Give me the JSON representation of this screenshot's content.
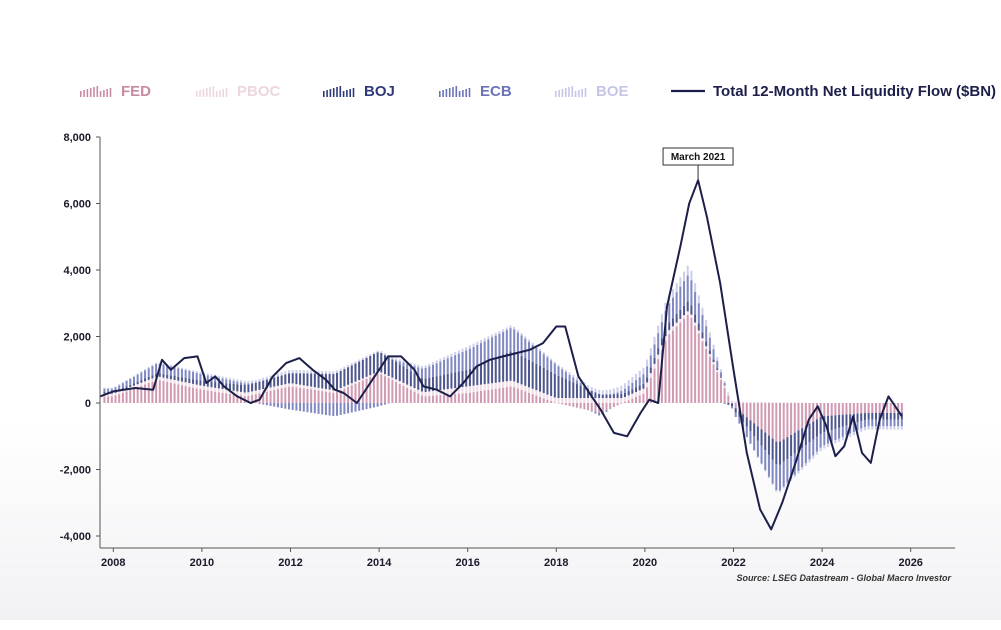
{
  "chart_data": {
    "type": "bar",
    "title": "",
    "xlabel": "",
    "ylabel": "",
    "legend_position": "top",
    "ylim": [
      -4000,
      8000
    ],
    "y_ticks": [
      8000,
      6000,
      4000,
      2000,
      0,
      -2000,
      -4000
    ],
    "y_tick_labels": [
      "8,000",
      "6,000",
      "4,000",
      "2,000",
      "0",
      "-2,000",
      "-4,000"
    ],
    "xlim": [
      2007.7,
      2027.0
    ],
    "x_ticks": [
      2008,
      2010,
      2012,
      2014,
      2016,
      2018,
      2020,
      2022,
      2024,
      2026
    ],
    "x_tick_labels": [
      "2008",
      "2010",
      "2012",
      "2014",
      "2016",
      "2018",
      "2020",
      "2022",
      "2024",
      "2026"
    ],
    "grid": false,
    "stacked": true,
    "series": [
      {
        "name": "FED",
        "kind": "bar",
        "color": "#c98aa6",
        "x": [
          2008,
          2009,
          2010,
          2011,
          2012,
          2013,
          2014,
          2015,
          2016,
          2017,
          2018,
          2019,
          2020,
          2020.5,
          2021,
          2021.5,
          2022,
          2023,
          2024,
          2025
        ],
        "y": [
          200,
          700,
          400,
          200,
          500,
          300,
          900,
          200,
          300,
          500,
          0,
          -300,
          300,
          2000,
          2700,
          1300,
          -100,
          -1200,
          -400,
          -300
        ]
      },
      {
        "name": "PBOC",
        "kind": "bar",
        "color": "#ecd6e0",
        "x": [
          2008,
          2010,
          2012,
          2014,
          2016,
          2018,
          2020,
          2022,
          2024
        ],
        "y": [
          80,
          120,
          100,
          50,
          200,
          150,
          150,
          50,
          0
        ]
      },
      {
        "name": "BOJ",
        "kind": "bar",
        "color": "#2f3a7a",
        "x": [
          2008,
          2010,
          2012,
          2013,
          2014,
          2015,
          2016,
          2017,
          2018,
          2019,
          2020,
          2021,
          2022,
          2023,
          2024,
          2025
        ],
        "y": [
          50,
          150,
          300,
          500,
          600,
          400,
          500,
          900,
          700,
          100,
          150,
          300,
          -100,
          -700,
          -500,
          -200
        ]
      },
      {
        "name": "ECB",
        "kind": "bar",
        "color": "#6b74b8",
        "x": [
          2008,
          2009,
          2010,
          2011,
          2012,
          2013,
          2014,
          2015,
          2016,
          2017,
          2018,
          2019,
          2020,
          2021,
          2022,
          2023,
          2024,
          2025
        ],
        "y": [
          100,
          300,
          200,
          50,
          -200,
          -400,
          -100,
          300,
          600,
          700,
          300,
          -100,
          300,
          800,
          -100,
          -800,
          -400,
          -200
        ]
      },
      {
        "name": "BOE",
        "kind": "bar",
        "color": "#c4c6e6",
        "x": [
          2008,
          2010,
          2012,
          2014,
          2016,
          2018,
          2020,
          2021,
          2022,
          2024
        ],
        "y": [
          30,
          50,
          100,
          50,
          100,
          50,
          200,
          300,
          0,
          -100
        ]
      },
      {
        "name": "Total 12-Month Net Liquidity Flow ($BN)",
        "kind": "line",
        "color": "#1c1f4a",
        "x": [
          2007.7,
          2008.0,
          2008.5,
          2008.9,
          2009.1,
          2009.3,
          2009.6,
          2009.9,
          2010.1,
          2010.3,
          2010.5,
          2010.8,
          2011.1,
          2011.3,
          2011.6,
          2011.9,
          2012.2,
          2012.5,
          2012.8,
          2013.0,
          2013.2,
          2013.5,
          2013.8,
          2014.0,
          2014.2,
          2014.5,
          2014.8,
          2015.0,
          2015.3,
          2015.6,
          2015.9,
          2016.2,
          2016.5,
          2016.8,
          2017.1,
          2017.4,
          2017.7,
          2018.0,
          2018.2,
          2018.5,
          2018.8,
          2019.0,
          2019.3,
          2019.6,
          2019.9,
          2020.1,
          2020.3,
          2020.5,
          2020.8,
          2021.0,
          2021.2,
          2021.4,
          2021.7,
          2022.0,
          2022.3,
          2022.6,
          2022.85,
          2023.1,
          2023.4,
          2023.7,
          2023.9,
          2024.1,
          2024.3,
          2024.5,
          2024.7,
          2024.9,
          2025.1,
          2025.3,
          2025.5,
          2025.7,
          2025.8
        ],
        "y": [
          200,
          350,
          450,
          400,
          1300,
          1000,
          1350,
          1400,
          600,
          800,
          500,
          200,
          0,
          100,
          800,
          1200,
          1350,
          1000,
          700,
          400,
          300,
          0,
          600,
          1000,
          1400,
          1400,
          1000,
          500,
          400,
          200,
          600,
          1100,
          1300,
          1400,
          1500,
          1600,
          1800,
          2300,
          2300,
          800,
          200,
          -200,
          -900,
          -1000,
          -300,
          100,
          0,
          2900,
          4700,
          6000,
          6700,
          5600,
          3600,
          1000,
          -1500,
          -3200,
          -3800,
          -3000,
          -1800,
          -500,
          -100,
          -700,
          -1600,
          -1300,
          -400,
          -1500,
          -1800,
          -500,
          200,
          -200,
          -400
        ]
      }
    ],
    "annotations": [
      {
        "text": "March 2021",
        "x": 2021.2,
        "y": 6700
      }
    ],
    "source": "Source: LSEG Datastream - Global Macro Investor"
  }
}
